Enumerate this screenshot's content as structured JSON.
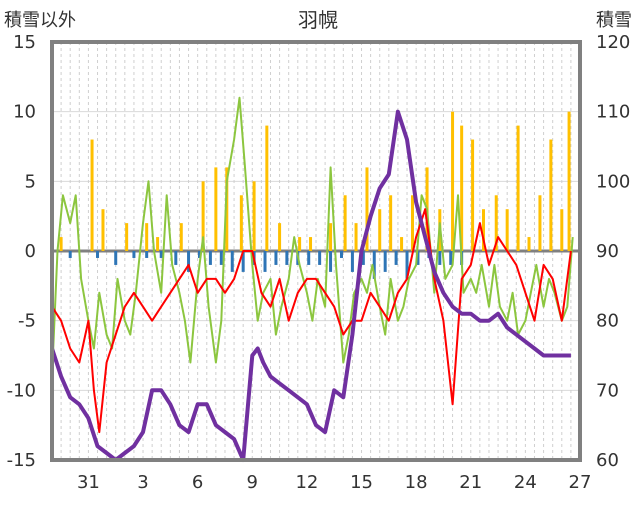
{
  "chart_data": {
    "type": "line",
    "title": "羽幌",
    "left_axis_label": "積雪以外",
    "right_axis_label": "積雪",
    "left_axis": {
      "min": -15,
      "max": 15,
      "ticks": [
        -15,
        -10,
        -5,
        0,
        5,
        10,
        15
      ]
    },
    "right_axis": {
      "min": 60,
      "max": 120,
      "ticks": [
        60,
        70,
        80,
        90,
        100,
        110,
        120
      ]
    },
    "x_axis": {
      "min": 29,
      "max": 58,
      "tick_values": [
        31,
        34,
        37,
        40,
        43,
        46,
        49,
        52,
        55,
        58
      ],
      "tick_labels": [
        "31",
        "3",
        "6",
        "9",
        "12",
        "15",
        "18",
        "21",
        "24",
        "27"
      ]
    },
    "grid": {
      "vertical_dashed": true,
      "horizontal_solid": true
    },
    "colors": {
      "temperature": "#ff0000",
      "wind": "#8cc63f",
      "precipitation": "#ffc000",
      "snow_change": "#2e75b6",
      "snow_depth": "#7030a0",
      "zero_line": "#808080",
      "frame": "#808080"
    },
    "series": [
      {
        "key": "temperature",
        "axis": "left",
        "kind": "line",
        "x": [
          29.0,
          29.5,
          30.0,
          30.5,
          31.0,
          31.3,
          31.6,
          32.0,
          32.5,
          33.0,
          33.5,
          34.0,
          34.5,
          35.0,
          35.5,
          36.0,
          36.5,
          37.0,
          37.5,
          38.0,
          38.5,
          39.0,
          39.5,
          40.0,
          40.5,
          41.0,
          41.5,
          42.0,
          42.5,
          43.0,
          43.5,
          44.0,
          44.5,
          45.0,
          45.5,
          46.0,
          46.5,
          47.0,
          47.5,
          48.0,
          48.5,
          49.0,
          49.5,
          50.0,
          50.5,
          51.0,
          51.5,
          52.0,
          52.5,
          53.0,
          53.5,
          54.0,
          54.5,
          55.0,
          55.5,
          56.0,
          56.5,
          57.0,
          57.5
        ],
        "y": [
          -4,
          -5,
          -7,
          -8,
          -5,
          -10,
          -13,
          -8,
          -6,
          -4,
          -3,
          -4,
          -5,
          -4,
          -3,
          -2,
          -1,
          -3,
          -2,
          -2,
          -3,
          -2,
          0,
          0,
          -3,
          -4,
          -2,
          -5,
          -3,
          -2,
          -2,
          -3,
          -4,
          -6,
          -5,
          -5,
          -3,
          -4,
          -5,
          -3,
          -2,
          1,
          3,
          -2,
          -5,
          -11,
          -2,
          -1,
          2,
          -1,
          1,
          0,
          -1,
          -3,
          -5,
          -1,
          -2,
          -5,
          0
        ]
      },
      {
        "key": "wind",
        "axis": "left",
        "kind": "line",
        "x": [
          29.0,
          29.3,
          29.6,
          30.0,
          30.3,
          30.6,
          31.0,
          31.3,
          31.6,
          32.0,
          32.3,
          32.6,
          33.0,
          33.3,
          33.6,
          34.0,
          34.3,
          34.6,
          35.0,
          35.3,
          35.6,
          36.0,
          36.3,
          36.6,
          37.0,
          37.3,
          37.6,
          38.0,
          38.3,
          38.6,
          39.0,
          39.3,
          39.6,
          40.0,
          40.3,
          40.6,
          41.0,
          41.3,
          41.6,
          42.0,
          42.3,
          42.6,
          43.0,
          43.3,
          43.6,
          44.0,
          44.3,
          44.6,
          45.0,
          45.3,
          45.6,
          46.0,
          46.3,
          46.6,
          47.0,
          47.3,
          47.6,
          48.0,
          48.3,
          48.6,
          49.0,
          49.3,
          49.6,
          50.0,
          50.3,
          50.6,
          51.0,
          51.3,
          51.6,
          52.0,
          52.3,
          52.6,
          53.0,
          53.3,
          53.6,
          54.0,
          54.3,
          54.6,
          55.0,
          55.3,
          55.6,
          56.0,
          56.3,
          56.6,
          57.0,
          57.3,
          57.6
        ],
        "y": [
          -9,
          0,
          4,
          2,
          4,
          -2,
          -5,
          -7,
          -3,
          -6,
          -7,
          -2,
          -5,
          -6,
          -3,
          2,
          5,
          0,
          -3,
          4,
          -1,
          -3,
          -5,
          -8,
          -2,
          1,
          -4,
          -8,
          -5,
          5,
          8,
          11,
          6,
          -1,
          -5,
          -3,
          -2,
          -6,
          -4,
          -2,
          1,
          -1,
          -3,
          -5,
          -2,
          -4,
          6,
          -1,
          -8,
          -6,
          -3,
          -2,
          -3,
          -1,
          -4,
          -6,
          -2,
          -5,
          -4,
          -2,
          -1,
          4,
          3,
          -3,
          2,
          -2,
          -1,
          4,
          -3,
          -2,
          -3,
          -1,
          -4,
          -1,
          -4,
          -5,
          -3,
          -6,
          -5,
          -3,
          -1,
          -4,
          -2,
          -3,
          -5,
          -4,
          1
        ]
      },
      {
        "key": "snow_depth",
        "axis": "right",
        "kind": "line",
        "x": [
          29.0,
          29.5,
          30.0,
          30.5,
          31.0,
          31.5,
          32.0,
          32.5,
          33.0,
          33.5,
          34.0,
          34.5,
          35.0,
          35.5,
          36.0,
          36.5,
          37.0,
          37.5,
          38.0,
          38.5,
          39.0,
          39.5,
          40.0,
          40.3,
          40.6,
          41.0,
          41.5,
          42.0,
          42.5,
          43.0,
          43.5,
          44.0,
          44.5,
          45.0,
          45.5,
          46.0,
          46.5,
          47.0,
          47.5,
          48.0,
          48.5,
          49.0,
          49.5,
          50.0,
          50.5,
          51.0,
          51.5,
          52.0,
          52.5,
          53.0,
          53.5,
          54.0,
          54.5,
          55.0,
          55.5,
          56.0,
          56.5,
          57.0,
          57.5
        ],
        "y": [
          76,
          72,
          69,
          68,
          66,
          62,
          61,
          60,
          61,
          62,
          64,
          70,
          70,
          68,
          65,
          64,
          68,
          68,
          65,
          64,
          63,
          60,
          75,
          76,
          74,
          72,
          71,
          70,
          69,
          68,
          65,
          64,
          70,
          69,
          78,
          90,
          95,
          99,
          101,
          110,
          106,
          97,
          92,
          87,
          84,
          82,
          81,
          81,
          80,
          80,
          81,
          79,
          78,
          77,
          76,
          75,
          75,
          75,
          75
        ]
      },
      {
        "key": "precipitation",
        "axis": "left",
        "kind": "bar",
        "x": [
          29.5,
          31.2,
          31.8,
          33.1,
          34.2,
          34.8,
          36.1,
          37.3,
          38.0,
          38.6,
          39.4,
          40.1,
          40.8,
          41.5,
          42.6,
          43.2,
          44.3,
          45.1,
          45.7,
          46.3,
          47.0,
          47.6,
          48.2,
          48.8,
          49.6,
          50.3,
          51.0,
          51.5,
          52.1,
          52.7,
          53.4,
          54.0,
          54.6,
          55.2,
          55.8,
          56.4,
          57.0,
          57.4
        ],
        "y": [
          1,
          8,
          3,
          2,
          2,
          1,
          2,
          5,
          6,
          6,
          4,
          5,
          9,
          2,
          1,
          1,
          2,
          4,
          2,
          6,
          3,
          4,
          1,
          4,
          6,
          3,
          10,
          9,
          8,
          3,
          4,
          3,
          9,
          1,
          4,
          8,
          3,
          10
        ]
      },
      {
        "key": "snow_change",
        "axis": "right",
        "kind": "bar",
        "x": [
          30.0,
          31.5,
          32.5,
          33.5,
          34.2,
          35.0,
          35.8,
          36.5,
          37.1,
          37.7,
          38.3,
          38.9,
          39.5,
          40.1,
          40.7,
          41.3,
          41.9,
          42.5,
          43.1,
          43.7,
          44.3,
          44.9,
          45.5,
          46.1,
          46.7,
          47.3,
          47.9,
          48.5,
          49.1,
          49.7,
          50.3,
          50.9,
          51.5
        ],
        "y": [
          -1,
          -1,
          -2,
          -1,
          -1,
          -1,
          -2,
          -3,
          -1,
          -2,
          -2,
          -3,
          -3,
          -2,
          -3,
          -2,
          -2,
          -2,
          -2,
          -2,
          -3,
          -1,
          -3,
          -2,
          -4,
          -3,
          -2,
          -4,
          -2,
          -1,
          -2,
          -2,
          -2
        ]
      }
    ]
  }
}
